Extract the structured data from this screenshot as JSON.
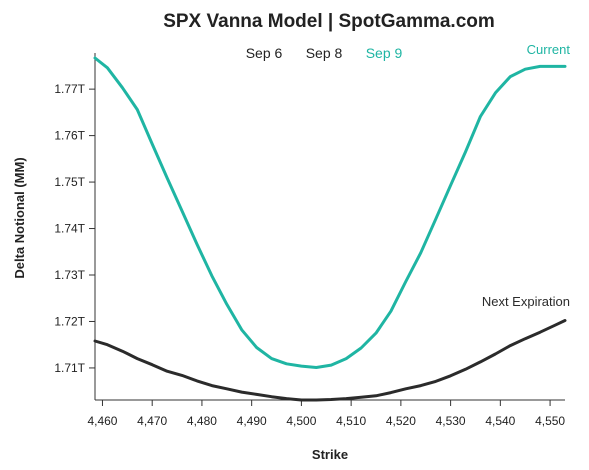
{
  "colors": {
    "current": "#1fb5a3",
    "next_expiration": "#2b2b2b",
    "axis": "#333333",
    "text": "#222222"
  },
  "chart_title": "SPX Vanna Model | SpotGamma.com",
  "expiry_tabs": [
    {
      "label": "Sep 6",
      "active": false
    },
    {
      "label": "Sep 8",
      "active": false
    },
    {
      "label": "Sep 9",
      "active": true
    }
  ],
  "chart_data": {
    "type": "line",
    "title": "SPX Vanna Model | SpotGamma.com",
    "xlabel": "Strike",
    "ylabel": "Delta Notional (MM)",
    "xlim": [
      4458.5,
      4553
    ],
    "ylim": [
      1.7031,
      1.7767
    ],
    "x_ticks": [
      "4,460",
      "4,470",
      "4,480",
      "4,490",
      "4,500",
      "4,510",
      "4,520",
      "4,530",
      "4,540",
      "4,550"
    ],
    "x_tick_values": [
      4460,
      4470,
      4480,
      4490,
      4500,
      4510,
      4520,
      4530,
      4540,
      4550
    ],
    "y_ticks": [
      "1.71T",
      "1.72T",
      "1.73T",
      "1.74T",
      "1.75T",
      "1.76T",
      "1.77T"
    ],
    "y_tick_values": [
      1.71,
      1.72,
      1.73,
      1.74,
      1.75,
      1.76,
      1.77
    ],
    "grid": false,
    "series": [
      {
        "name": "Current",
        "color_key": "current",
        "x": [
          4458.5,
          4461,
          4464,
          4467,
          4470,
          4473,
          4476,
          4479,
          4482,
          4485,
          4488,
          4491,
          4494,
          4497,
          4500,
          4503,
          4506,
          4509,
          4512,
          4515,
          4518,
          4521,
          4524,
          4527,
          4530,
          4533,
          4536,
          4539,
          4542,
          4545,
          4548,
          4551,
          4553
        ],
        "y": [
          1.7767,
          1.7746,
          1.7703,
          1.7656,
          1.7582,
          1.7509,
          1.7438,
          1.7366,
          1.7298,
          1.7237,
          1.7182,
          1.7144,
          1.712,
          1.7109,
          1.7104,
          1.7101,
          1.7106,
          1.712,
          1.7143,
          1.7175,
          1.7222,
          1.7286,
          1.7348,
          1.742,
          1.7493,
          1.7565,
          1.7641,
          1.7692,
          1.7727,
          1.7743,
          1.7749,
          1.7749,
          1.7749
        ]
      },
      {
        "name": "Next Expiration",
        "color_key": "next_expiration",
        "x": [
          4458.5,
          4461,
          4464,
          4467,
          4470,
          4473,
          4476,
          4479,
          4482,
          4485,
          4488,
          4491,
          4494,
          4497,
          4500,
          4503,
          4506,
          4509,
          4512,
          4515,
          4518,
          4521,
          4524,
          4527,
          4530,
          4533,
          4536,
          4539,
          4542,
          4545,
          4548,
          4551,
          4553
        ],
        "y": [
          1.7158,
          1.715,
          1.7136,
          1.712,
          1.7107,
          1.7093,
          1.7084,
          1.7072,
          1.7062,
          1.7055,
          1.7048,
          1.7043,
          1.7038,
          1.7034,
          1.7031,
          1.7031,
          1.7032,
          1.7034,
          1.7037,
          1.704,
          1.7047,
          1.7055,
          1.7062,
          1.7071,
          1.7083,
          1.7097,
          1.7113,
          1.713,
          1.7148,
          1.7163,
          1.7177,
          1.7192,
          1.7202
        ]
      }
    ]
  }
}
